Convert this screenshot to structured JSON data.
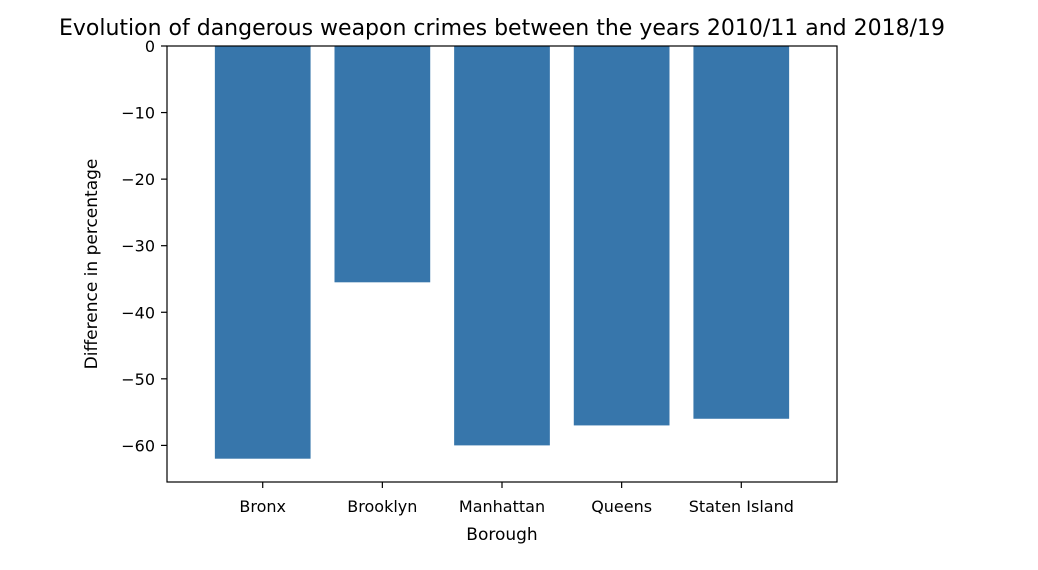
{
  "chart_data": {
    "type": "bar",
    "title": "Evolution of dangerous weapon crimes between the years 2010/11 and 2018/19",
    "xlabel": "Borough",
    "ylabel": "Difference in percentage",
    "categories": [
      "Bronx",
      "Brooklyn",
      "Manhattan",
      "Queens",
      "Staten Island"
    ],
    "values": [
      -62.0,
      -35.5,
      -60.0,
      -57.0,
      -56.0
    ],
    "ylim": [
      -65.5,
      0
    ],
    "yticks": [
      0,
      -10,
      -20,
      -30,
      -40,
      -50,
      -60
    ],
    "ytick_labels": [
      "0",
      "−10",
      "−20",
      "−30",
      "−40",
      "−50",
      "−60"
    ],
    "grid": false,
    "legend": "none",
    "bar_color": "#3776ab"
  }
}
